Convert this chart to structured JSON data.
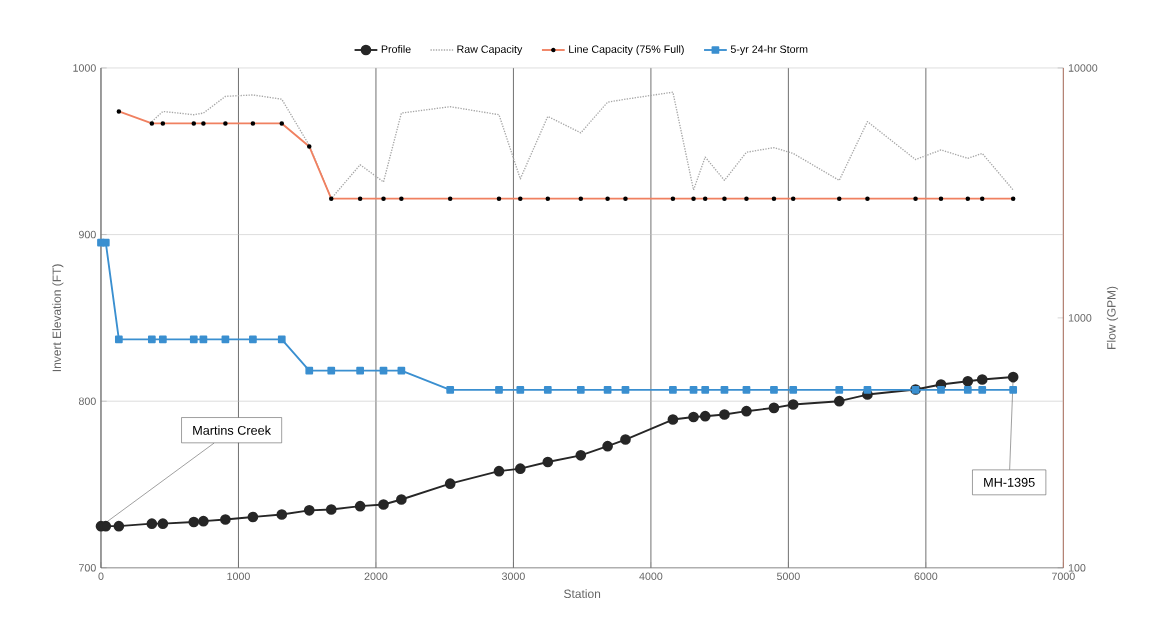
{
  "chart_data": {
    "type": "line",
    "xlabel": "Station",
    "ylabel": "Invert Elevation (FT)",
    "y2label": "Flow (GPM)",
    "xlim": [
      0,
      7000
    ],
    "xticks": [
      0,
      1000,
      2000,
      3000,
      4000,
      5000,
      6000,
      7000
    ],
    "ylim": [
      700,
      1000
    ],
    "yticks": [
      700,
      800,
      900,
      1000
    ],
    "y2lim": [
      100,
      10000
    ],
    "y2ticks": [
      100,
      1000,
      10000
    ],
    "log": "y2",
    "grid": true,
    "legend": "top",
    "series": [
      {
        "name": "Profile",
        "color": "#262626",
        "marker": "circle",
        "line_style": "solid",
        "axis": "y",
        "x": [
          0,
          35,
          130,
          370,
          450,
          675,
          745,
          905,
          1105,
          1315,
          1515,
          1675,
          1885,
          2055,
          2185,
          2540,
          2895,
          3050,
          3250,
          3490,
          3685,
          3815,
          4160,
          4310,
          4395,
          4535,
          4695,
          4895,
          5035,
          5370,
          5575,
          5925,
          6110,
          6305,
          6410,
          6635
        ],
        "values": [
          725,
          725,
          725,
          726.5,
          726.5,
          727.5,
          728,
          729,
          730.5,
          732,
          734.5,
          735,
          737,
          738,
          741,
          750.5,
          758,
          759.5,
          763.5,
          767.5,
          773,
          777,
          789,
          790.5,
          791,
          792,
          794,
          796,
          798,
          800,
          804,
          807,
          810,
          812,
          813,
          814.5
        ]
      },
      {
        "name": "Raw Capacity",
        "color": "#a6a6a6",
        "marker": "none",
        "line_style": "dotted",
        "axis": "y2",
        "x": [
          370,
          450,
          675,
          745,
          905,
          1105,
          1315,
          1515,
          1675,
          1885,
          2055,
          2185,
          2540,
          2895,
          3050,
          3250,
          3490,
          3685,
          3815,
          4160,
          4310,
          4395,
          4535,
          4695,
          4895,
          5035,
          5370,
          5575,
          5925,
          6110,
          6305,
          6410,
          6635
        ],
        "values": [
          6100,
          6700,
          6500,
          6600,
          7700,
          7800,
          7500,
          4900,
          3000,
          4100,
          3500,
          6600,
          7000,
          6500,
          3600,
          6400,
          5500,
          7300,
          7500,
          8000,
          3250,
          4400,
          3550,
          4600,
          4800,
          4550,
          3550,
          6100,
          4300,
          4700,
          4350,
          4550,
          3250
        ]
      },
      {
        "name": "Line Capacity (75% Full)",
        "color": "#f08060",
        "marker": "circle",
        "line_style": "solid",
        "axis": "y2",
        "x": [
          130,
          370,
          450,
          675,
          745,
          905,
          1105,
          1315,
          1515,
          1675,
          1885,
          2055,
          2185,
          2540,
          2895,
          3050,
          3250,
          3490,
          3685,
          3815,
          4160,
          4310,
          4395,
          4535,
          4695,
          4895,
          5035,
          5370,
          5575,
          5925,
          6110,
          6305,
          6410,
          6635
        ],
        "values": [
          6700,
          6000,
          6000,
          6000,
          6000,
          6000,
          6000,
          6000,
          4850,
          3000,
          3000,
          3000,
          3000,
          3000,
          3000,
          3000,
          3000,
          3000,
          3000,
          3000,
          3000,
          3000,
          3000,
          3000,
          3000,
          3000,
          3000,
          3000,
          3000,
          3000,
          3000,
          3000,
          3000,
          3000
        ]
      },
      {
        "name": "5-yr 24-hr Storm",
        "color": "#3a8fd0",
        "marker": "square",
        "line_style": "solid",
        "axis": "y2",
        "x": [
          0,
          35,
          130,
          370,
          450,
          675,
          745,
          905,
          1105,
          1315,
          1515,
          1675,
          1885,
          2055,
          2185,
          2540,
          2895,
          3050,
          3250,
          3490,
          3685,
          3815,
          4160,
          4310,
          4395,
          4535,
          4695,
          4895,
          5035,
          5370,
          5575,
          5925,
          6110,
          6305,
          6410,
          6635
        ],
        "values": [
          2000,
          2000,
          820,
          820,
          820,
          820,
          820,
          820,
          820,
          820,
          615,
          615,
          615,
          615,
          615,
          515,
          515,
          515,
          515,
          515,
          515,
          515,
          515,
          515,
          515,
          515,
          515,
          515,
          515,
          515,
          515,
          515,
          515,
          515,
          515,
          515
        ]
      }
    ],
    "annotations": [
      {
        "text": "Martins Creek",
        "x": 0,
        "y": 725
      },
      {
        "text": "MH-1395",
        "x": 6635,
        "y": 814.5
      }
    ]
  }
}
